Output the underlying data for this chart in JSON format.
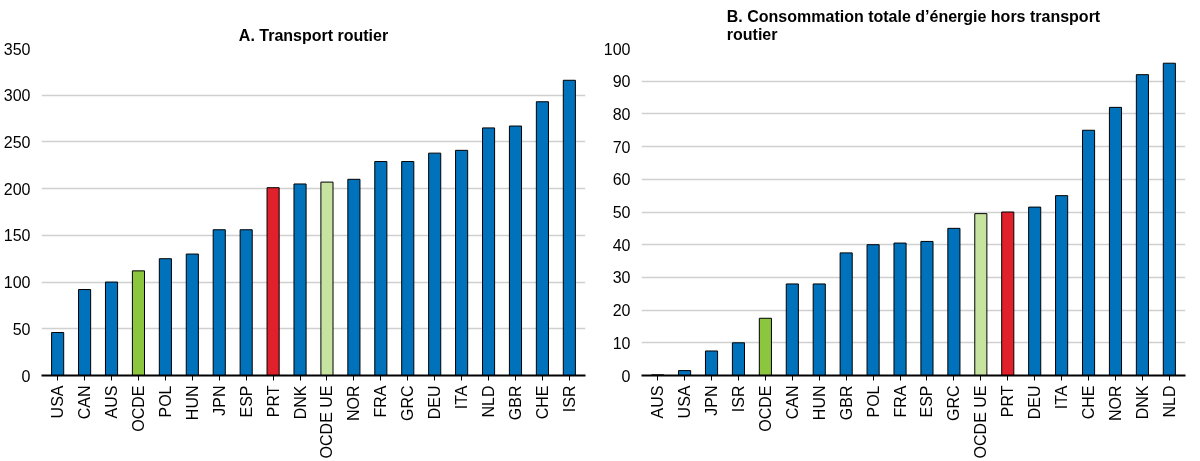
{
  "chart_data": [
    {
      "type": "bar",
      "title": "A. Transport routier",
      "categories": [
        "USA",
        "CAN",
        "AUS",
        "OCDE",
        "POL",
        "HUN",
        "JPN",
        "ESP",
        "PRT",
        "DNK",
        "OCDE UE",
        "NOR",
        "FRA",
        "GRC",
        "DEU",
        "ITA",
        "NLD",
        "GBR",
        "CHE",
        "ISR"
      ],
      "values": [
        46,
        92,
        100,
        112,
        125,
        130,
        156,
        156,
        201,
        205,
        207,
        210,
        229,
        229,
        238,
        241,
        265,
        267,
        293,
        316
      ],
      "colors": [
        "#0072bc",
        "#0072bc",
        "#0072bc",
        "#8cc63f",
        "#0072bc",
        "#0072bc",
        "#0072bc",
        "#0072bc",
        "#e0202a",
        "#0072bc",
        "#c6e3a0",
        "#0072bc",
        "#0072bc",
        "#0072bc",
        "#0072bc",
        "#0072bc",
        "#0072bc",
        "#0072bc",
        "#0072bc",
        "#0072bc"
      ],
      "ylim": [
        0,
        350
      ],
      "yticks": [
        0,
        50,
        100,
        150,
        200,
        250,
        300,
        350
      ],
      "grid": "y"
    },
    {
      "type": "bar",
      "title": "B. Consommation totale d’énergie hors transport routier",
      "categories": [
        "AUS",
        "USA",
        "JPN",
        "ISR",
        "OCDE",
        "CAN",
        "HUN",
        "GBR",
        "POL",
        "FRA",
        "ESP",
        "GRC",
        "OCDE UE",
        "PRT",
        "DEU",
        "ITA",
        "CHE",
        "NOR",
        "DNK",
        "NLD"
      ],
      "values": [
        0.2,
        1.5,
        7.5,
        10,
        17.5,
        28,
        28,
        37.5,
        40,
        40.5,
        41,
        45,
        49.5,
        50,
        51.5,
        55,
        75,
        82,
        92,
        95.5
      ],
      "colors": [
        "#0072bc",
        "#0072bc",
        "#0072bc",
        "#0072bc",
        "#8cc63f",
        "#0072bc",
        "#0072bc",
        "#0072bc",
        "#0072bc",
        "#0072bc",
        "#0072bc",
        "#0072bc",
        "#c6e3a0",
        "#e0202a",
        "#0072bc",
        "#0072bc",
        "#0072bc",
        "#0072bc",
        "#0072bc",
        "#0072bc"
      ],
      "ylim": [
        0,
        100
      ],
      "yticks": [
        0,
        10,
        20,
        30,
        40,
        50,
        60,
        70,
        80,
        90,
        100
      ],
      "grid": "y"
    }
  ]
}
